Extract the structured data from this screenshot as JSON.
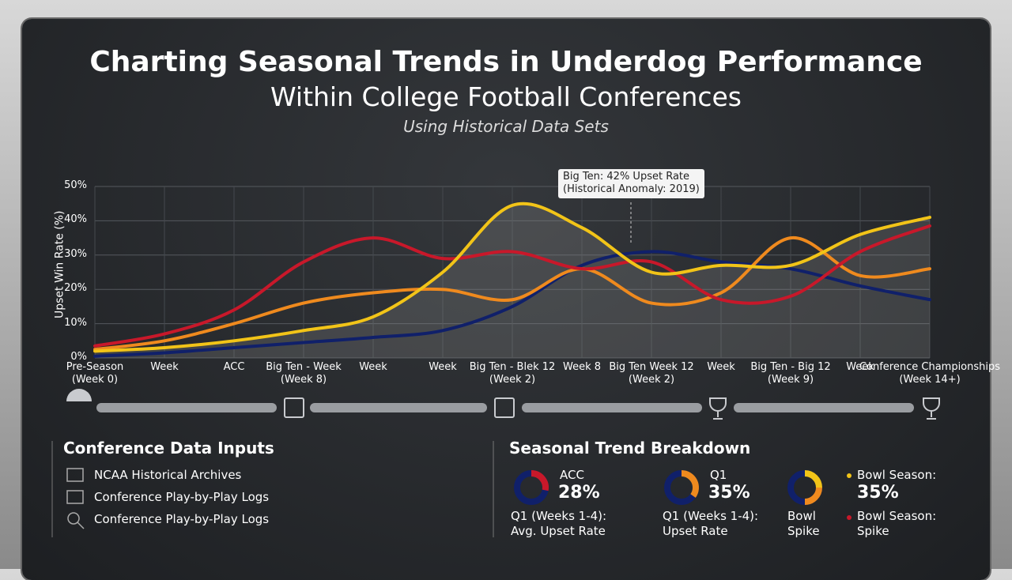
{
  "header": {
    "title": [
      "Charting Seasonal Trends in Underdog Performance",
      "Within College Football Conferences"
    ],
    "subtitle": "Using Historical Data Sets"
  },
  "chart_data": {
    "type": "line",
    "y_label": "Upset Win Rate (%)",
    "categories": [
      "Pre-Season\n(Week 0)",
      "Week",
      "ACC",
      "Big Ten - Week\n(Week 8)",
      "Week",
      "Week",
      "Big Ten - Blek 12\n(Week 2)",
      "Week 8",
      "Big Ten Week 12\n(Week 2)",
      "Week",
      "Big Ten - Big  12\n(Week 9)",
      "Week",
      "Conference Championships\n(Week 14+)"
    ],
    "series": [
      {
        "color": "#f2c418",
        "values": [
          2,
          3,
          5,
          8,
          12,
          25,
          44.5,
          38,
          25,
          27,
          27,
          36,
          41
        ]
      },
      {
        "color": "#c8182a",
        "values": [
          3.5,
          7,
          14,
          28,
          35,
          29,
          31,
          26,
          28,
          17,
          18,
          31,
          38.5
        ]
      },
      {
        "color": "#ef8a1e",
        "values": [
          2.5,
          5,
          10,
          16,
          19,
          20,
          17,
          26,
          16,
          19,
          35,
          24,
          26
        ]
      },
      {
        "color": "#10206a",
        "values": [
          0.5,
          1.5,
          3,
          4.5,
          6,
          8,
          15,
          27,
          31,
          28,
          26,
          21,
          17
        ]
      }
    ],
    "ylim": [
      0,
      50
    ],
    "yticks": [
      {
        "value": 0,
        "label": "0%"
      },
      {
        "value": 10,
        "label": "10%"
      },
      {
        "value": 20,
        "label": "20%"
      },
      {
        "value": 30,
        "label": "30%"
      },
      {
        "value": 40,
        "label": "40%"
      },
      {
        "value": 50,
        "label": "50%"
      }
    ],
    "grid": true,
    "area_under": 0,
    "annotation": [
      "Big Ten: 42% Upset Rate",
      "(Historical Anomaly: 2019)"
    ]
  },
  "inputs": {
    "title": "Conference Data Inputs",
    "items": [
      "NCAA Historical Archives",
      "Conference Play-by-Play Logs",
      "Conference Play-by-Play Logs"
    ]
  },
  "breakdown": {
    "title": "Seasonal Trend Breakdown",
    "items": [
      {
        "label": "ACC",
        "value": 28,
        "value_label": "28%",
        "caption": "Q1 (Weeks 1-4):\nAvg. Upset Rate"
      },
      {
        "label": "Q1",
        "value": 35,
        "value_label": "35%",
        "caption": "Q1 (Weeks 1-4):\nUpset Rate"
      }
    ],
    "bowl_caption": "Bowl\nSpike",
    "legend": [
      {
        "text": "Bowl Season:",
        "value_text": "35%",
        "color": "#f2c418"
      },
      {
        "text": "Bowl Season:\nSpike",
        "color": "#c8182a"
      }
    ]
  }
}
